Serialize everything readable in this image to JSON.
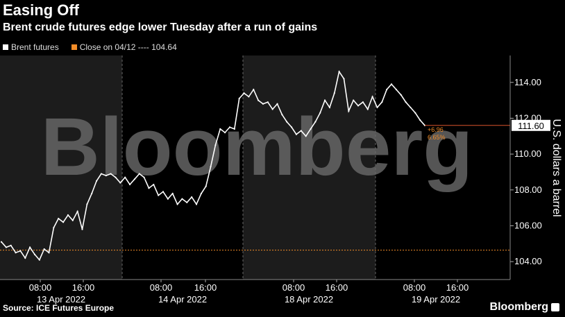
{
  "header": {
    "title": "Easing Off",
    "subtitle": "Brent crude futures edge lower Tuesday after a run of gains"
  },
  "legend": [
    {
      "label": "Brent futures",
      "color": "#ffffff"
    },
    {
      "label": "Close on 04/12 ---- 104.64",
      "color": "#f28c28"
    }
  ],
  "footer": {
    "source": "Source: ICE Futures Europe",
    "brand": "Bloomberg"
  },
  "watermark": "Bloomberg",
  "chart_data": {
    "type": "line",
    "ylabel": "U.S. dollars a barrel",
    "ylim": [
      103,
      115.5
    ],
    "yticks": [
      "104.00",
      "106.00",
      "108.00",
      "110.00",
      "112.00",
      "114.00"
    ],
    "ytick_values": [
      104,
      106,
      108,
      110,
      112,
      114
    ],
    "day_labels": [
      "13 Apr 2022",
      "14 Apr 2022",
      "18 Apr 2022",
      "19 Apr 2022"
    ],
    "time_labels": [
      "08:00",
      "16:00",
      "08:00",
      "16:00",
      "08:00",
      "16:00",
      "08:00",
      "16:00"
    ],
    "reference_line": {
      "label": "Close on 04/12",
      "value": 104.64,
      "color": "#f28c28"
    },
    "last_value": {
      "label": "111.60",
      "value": 111.6
    },
    "annotation": {
      "change": "+6.96",
      "percent": "6.65%"
    },
    "series": [
      {
        "name": "Brent futures",
        "color": "#ffffff",
        "points": [
          [
            0,
            105.1
          ],
          [
            1,
            104.8
          ],
          [
            2,
            104.9
          ],
          [
            3,
            104.5
          ],
          [
            4,
            104.6
          ],
          [
            5,
            104.2
          ],
          [
            6,
            104.8
          ],
          [
            7,
            104.4
          ],
          [
            8,
            104.1
          ],
          [
            9,
            104.7
          ],
          [
            10,
            104.5
          ],
          [
            11,
            105.9
          ],
          [
            12,
            106.4
          ],
          [
            13,
            106.2
          ],
          [
            14,
            106.6
          ],
          [
            15,
            106.3
          ],
          [
            16,
            106.8
          ],
          [
            17,
            105.8
          ],
          [
            18,
            107.2
          ],
          [
            19,
            107.8
          ],
          [
            20,
            108.5
          ],
          [
            21,
            108.9
          ],
          [
            22,
            108.8
          ],
          [
            23,
            108.9
          ],
          [
            24,
            108.7
          ],
          [
            25,
            108.4
          ],
          [
            26,
            108.7
          ],
          [
            27,
            108.3
          ],
          [
            28,
            108.6
          ],
          [
            29,
            108.9
          ],
          [
            30,
            108.7
          ],
          [
            31,
            108.1
          ],
          [
            32,
            108.3
          ],
          [
            33,
            107.7
          ],
          [
            34,
            107.9
          ],
          [
            35,
            107.5
          ],
          [
            36,
            107.8
          ],
          [
            37,
            107.2
          ],
          [
            38,
            107.5
          ],
          [
            39,
            107.3
          ],
          [
            40,
            107.6
          ],
          [
            41,
            107.2
          ],
          [
            42,
            107.8
          ],
          [
            43,
            108.2
          ],
          [
            44,
            109.3
          ],
          [
            45,
            110.5
          ],
          [
            46,
            111.4
          ],
          [
            47,
            111.2
          ],
          [
            48,
            111.5
          ],
          [
            49,
            111.4
          ],
          [
            50,
            113.1
          ],
          [
            51,
            113.4
          ],
          [
            52,
            113.2
          ],
          [
            53,
            113.6
          ],
          [
            54,
            113.0
          ],
          [
            55,
            112.8
          ],
          [
            56,
            112.9
          ],
          [
            57,
            112.5
          ],
          [
            58,
            112.8
          ],
          [
            59,
            112.2
          ],
          [
            60,
            111.8
          ],
          [
            61,
            111.5
          ],
          [
            62,
            111.1
          ],
          [
            63,
            111.3
          ],
          [
            64,
            111.0
          ],
          [
            65,
            111.4
          ],
          [
            66,
            111.8
          ],
          [
            67,
            112.3
          ],
          [
            68,
            113.0
          ],
          [
            69,
            112.6
          ],
          [
            70,
            113.4
          ],
          [
            71,
            114.6
          ],
          [
            72,
            114.2
          ],
          [
            73,
            112.4
          ],
          [
            74,
            113.0
          ],
          [
            75,
            112.7
          ],
          [
            76,
            112.9
          ],
          [
            77,
            112.5
          ],
          [
            78,
            113.2
          ],
          [
            79,
            112.6
          ],
          [
            80,
            112.9
          ],
          [
            81,
            113.6
          ],
          [
            82,
            113.9
          ],
          [
            83,
            113.6
          ],
          [
            84,
            113.3
          ],
          [
            85,
            112.9
          ],
          [
            86,
            112.6
          ],
          [
            87,
            112.3
          ],
          [
            88,
            111.9
          ],
          [
            89,
            111.6
          ]
        ]
      }
    ]
  }
}
